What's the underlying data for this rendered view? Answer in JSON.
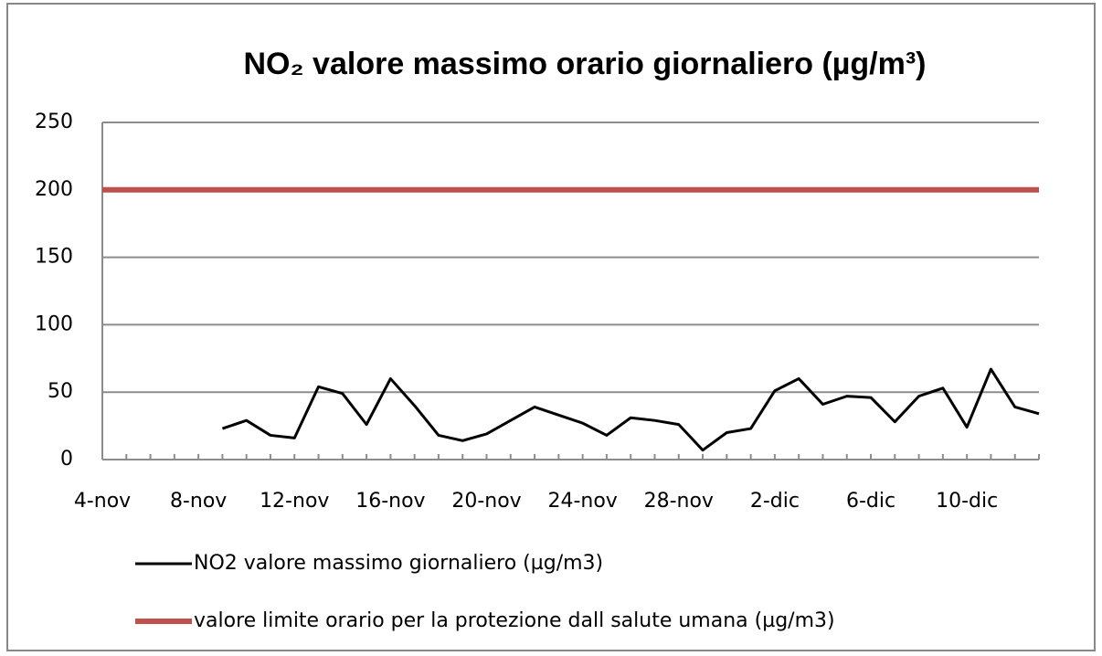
{
  "chart_data": {
    "type": "line",
    "title": "NO₂ valore massimo orario giornaliero (µg/m³)",
    "categories": [
      "4-nov",
      null,
      null,
      null,
      "8-nov",
      null,
      null,
      null,
      "12-nov",
      null,
      null,
      null,
      "16-nov",
      null,
      null,
      null,
      "20-nov",
      null,
      null,
      null,
      "24-nov",
      null,
      null,
      null,
      "28-nov",
      null,
      null,
      null,
      "2-dic",
      null,
      null,
      null,
      "6-dic",
      null,
      null,
      null,
      "10-dic",
      null,
      null,
      null
    ],
    "series": [
      {
        "name": "NO2 valore massimo giornaliero (µg/m3)",
        "color": "#000000",
        "values": [
          null,
          null,
          null,
          null,
          null,
          23,
          29,
          18,
          16,
          54,
          49,
          26,
          60,
          40,
          18,
          14,
          19,
          29,
          39,
          33,
          27,
          18,
          31,
          29,
          26,
          7,
          20,
          23,
          51,
          60,
          41,
          47,
          46,
          28,
          47,
          53,
          24,
          67,
          39,
          34
        ]
      },
      {
        "name": "valore limite orario per la protezione dall salute umana (µg/m3)",
        "color": "#c0504d",
        "values": [
          200,
          200,
          200,
          200,
          200,
          200,
          200,
          200,
          200,
          200,
          200,
          200,
          200,
          200,
          200,
          200,
          200,
          200,
          200,
          200,
          200,
          200,
          200,
          200,
          200,
          200,
          200,
          200,
          200,
          200,
          200,
          200,
          200,
          200,
          200,
          200,
          200,
          200,
          200,
          200
        ]
      }
    ],
    "ylim": [
      0,
      250
    ],
    "yticks": [
      0,
      50,
      100,
      150,
      200,
      250
    ],
    "grid": true,
    "legend": "bottom"
  }
}
